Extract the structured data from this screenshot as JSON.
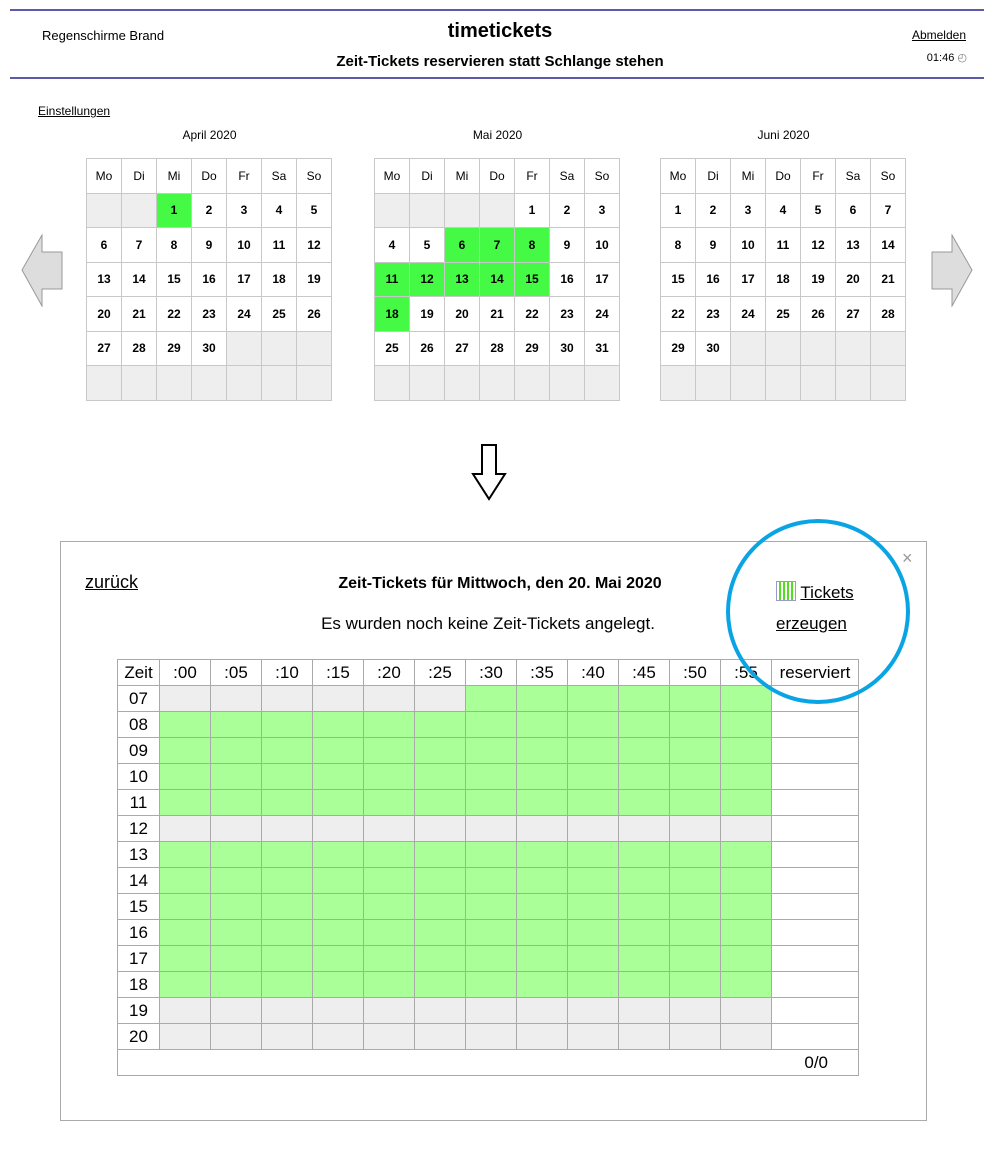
{
  "header": {
    "brand": "Regenschirme Brand",
    "title": "timetickets",
    "subtitle": "Zeit-Tickets reservieren statt Schlange stehen",
    "logout": "Abmelden",
    "time": "01:46",
    "clock_icon": "◴"
  },
  "settings_link": "Einstellungen",
  "weekdays": [
    "Mo",
    "Di",
    "Mi",
    "Do",
    "Fr",
    "Sa",
    "So"
  ],
  "calendars": [
    {
      "title": "April 2020",
      "offset": 2,
      "days": 30,
      "selected": [
        1
      ]
    },
    {
      "title": "Mai 2020",
      "offset": 4,
      "days": 31,
      "selected": [
        6,
        7,
        8,
        11,
        12,
        13,
        14,
        15,
        18
      ]
    },
    {
      "title": "Juni 2020",
      "offset": 0,
      "days": 30,
      "selected": []
    }
  ],
  "colors": {
    "selected_day": "#44fa44",
    "available_slot": "#aaff99",
    "unavailable_slot": "#eeeeee",
    "highlight_circle": "#0aa4e4",
    "header_line": "#5b5ba8"
  },
  "modal": {
    "back": "zurück",
    "heading": "Zeit-Tickets für Mittwoch, den 20. Mai 2020",
    "message": "Es wurden noch keine Zeit-Tickets angelegt.",
    "tickets_link_1": "Tickets",
    "tickets_link_2": "erzeugen",
    "close": "×",
    "grid": {
      "zeit_header": "Zeit",
      "minutes": [
        ":00",
        ":05",
        ":10",
        ":15",
        ":20",
        ":25",
        ":30",
        ":35",
        ":40",
        ":45",
        ":50",
        ":55"
      ],
      "reserved_header": "reserviert",
      "rows": [
        {
          "hour": "07",
          "available": [
            0,
            0,
            0,
            0,
            0,
            0,
            1,
            1,
            1,
            1,
            1,
            1
          ]
        },
        {
          "hour": "08",
          "available": [
            1,
            1,
            1,
            1,
            1,
            1,
            1,
            1,
            1,
            1,
            1,
            1
          ]
        },
        {
          "hour": "09",
          "available": [
            1,
            1,
            1,
            1,
            1,
            1,
            1,
            1,
            1,
            1,
            1,
            1
          ]
        },
        {
          "hour": "10",
          "available": [
            1,
            1,
            1,
            1,
            1,
            1,
            1,
            1,
            1,
            1,
            1,
            1
          ]
        },
        {
          "hour": "11",
          "available": [
            1,
            1,
            1,
            1,
            1,
            1,
            1,
            1,
            1,
            1,
            1,
            1
          ]
        },
        {
          "hour": "12",
          "available": [
            0,
            0,
            0,
            0,
            0,
            0,
            0,
            0,
            0,
            0,
            0,
            0
          ]
        },
        {
          "hour": "13",
          "available": [
            1,
            1,
            1,
            1,
            1,
            1,
            1,
            1,
            1,
            1,
            1,
            1
          ]
        },
        {
          "hour": "14",
          "available": [
            1,
            1,
            1,
            1,
            1,
            1,
            1,
            1,
            1,
            1,
            1,
            1
          ]
        },
        {
          "hour": "15",
          "available": [
            1,
            1,
            1,
            1,
            1,
            1,
            1,
            1,
            1,
            1,
            1,
            1
          ]
        },
        {
          "hour": "16",
          "available": [
            1,
            1,
            1,
            1,
            1,
            1,
            1,
            1,
            1,
            1,
            1,
            1
          ]
        },
        {
          "hour": "17",
          "available": [
            1,
            1,
            1,
            1,
            1,
            1,
            1,
            1,
            1,
            1,
            1,
            1
          ]
        },
        {
          "hour": "18",
          "available": [
            1,
            1,
            1,
            1,
            1,
            1,
            1,
            1,
            1,
            1,
            1,
            1
          ]
        },
        {
          "hour": "19",
          "available": [
            0,
            0,
            0,
            0,
            0,
            0,
            0,
            0,
            0,
            0,
            0,
            0
          ]
        },
        {
          "hour": "20",
          "available": [
            0,
            0,
            0,
            0,
            0,
            0,
            0,
            0,
            0,
            0,
            0,
            0
          ]
        }
      ],
      "total": "0/0"
    }
  }
}
